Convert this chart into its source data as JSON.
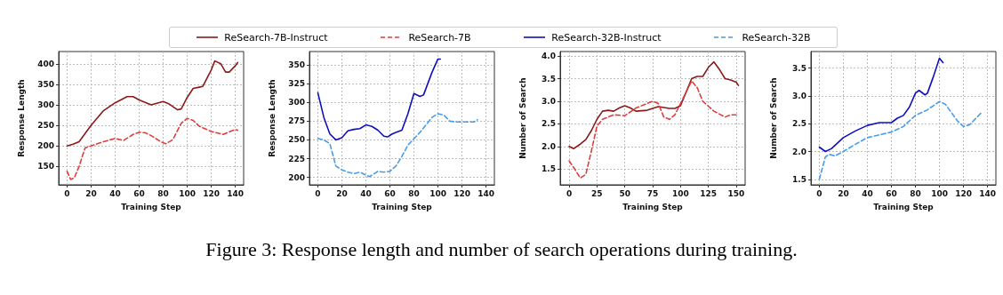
{
  "chart_data": [
    {
      "type": "line",
      "xlabel": "Training Step",
      "ylabel": "Response Length",
      "xlim": [
        -7,
        147
      ],
      "xticks": [
        0,
        20,
        40,
        60,
        80,
        100,
        120,
        140
      ],
      "ylim": [
        105,
        430
      ],
      "yticks": [
        150,
        200,
        250,
        300,
        350,
        400
      ],
      "grid": true,
      "legend": "top",
      "annotations": [
        "Figure 3: Response length and number of search operations during training."
      ],
      "series": [
        {
          "name": "ReSearch-7B-Instruct",
          "color": "#8b1a1a",
          "line_style": "solid",
          "x": [
            0,
            5,
            10,
            20,
            30,
            40,
            50,
            55,
            60,
            70,
            80,
            85,
            92,
            95,
            100,
            105,
            110,
            113,
            120,
            123,
            128,
            132,
            135,
            140,
            142
          ],
          "values": [
            200,
            204,
            210,
            250,
            285,
            305,
            320,
            320,
            312,
            300,
            308,
            302,
            288,
            290,
            318,
            340,
            343,
            345,
            385,
            407,
            400,
            380,
            380,
            395,
            403
          ]
        },
        {
          "name": "ReSearch-7B",
          "color": "#e03c3c",
          "line_style": "dashed",
          "x": [
            0,
            3,
            6,
            10,
            15,
            20,
            30,
            40,
            47,
            55,
            60,
            65,
            70,
            78,
            82,
            88,
            95,
            100,
            105,
            110,
            120,
            130,
            140,
            142
          ],
          "values": [
            138,
            118,
            122,
            150,
            195,
            200,
            210,
            218,
            213,
            228,
            233,
            232,
            225,
            210,
            205,
            215,
            255,
            267,
            262,
            248,
            235,
            228,
            240,
            238
          ]
        }
      ]
    },
    {
      "type": "line",
      "xlabel": "Training Step",
      "ylabel": "Response Length",
      "xlim": [
        -7,
        147
      ],
      "xticks": [
        0,
        20,
        40,
        60,
        80,
        100,
        120,
        140
      ],
      "ylim": [
        190,
        368
      ],
      "yticks": [
        200,
        225,
        250,
        275,
        300,
        325,
        350
      ],
      "grid": true,
      "legend": "top",
      "series": [
        {
          "name": "ReSearch-32B-Instruct",
          "color": "#0f0fbf",
          "line_style": "solid",
          "x": [
            0,
            5,
            10,
            15,
            20,
            25,
            30,
            35,
            40,
            45,
            50,
            55,
            58,
            62,
            65,
            70,
            75,
            80,
            85,
            88,
            95,
            100,
            102
          ],
          "values": [
            313,
            280,
            258,
            250,
            253,
            262,
            264,
            265,
            270,
            268,
            263,
            255,
            254,
            258,
            260,
            263,
            285,
            312,
            308,
            310,
            340,
            358,
            358
          ]
        },
        {
          "name": "ReSearch-32B",
          "color": "#4a9be8",
          "line_style": "dashed",
          "x": [
            0,
            5,
            10,
            15,
            20,
            25,
            30,
            35,
            40,
            43,
            50,
            55,
            60,
            65,
            70,
            75,
            85,
            95,
            100,
            105,
            110,
            115,
            120,
            130,
            133
          ],
          "values": [
            252,
            250,
            245,
            215,
            210,
            207,
            205,
            207,
            203,
            201,
            208,
            207,
            208,
            215,
            228,
            243,
            260,
            280,
            285,
            283,
            275,
            274,
            274,
            274,
            277
          ]
        }
      ]
    },
    {
      "type": "line",
      "xlabel": "Training Step",
      "ylabel": "Number of Search",
      "xlim": [
        -8,
        158
      ],
      "xticks": [
        0,
        25,
        50,
        75,
        100,
        125,
        150
      ],
      "ylim": [
        1.15,
        4.1
      ],
      "yticks": [
        {
          "value": 1.5,
          "label": "1.5"
        },
        {
          "value": 2,
          "label": "2.0"
        },
        {
          "value": 2.5,
          "label": "2.5"
        },
        {
          "value": 3,
          "label": "3.0"
        },
        {
          "value": 3.5,
          "label": "3.5"
        },
        {
          "value": 4,
          "label": "4.0"
        }
      ],
      "grid": true,
      "legend": "top",
      "series": [
        {
          "name": "ReSearch-7B-Instruct",
          "color": "#8b1a1a",
          "line_style": "solid",
          "x": [
            0,
            4,
            10,
            15,
            20,
            25,
            30,
            35,
            40,
            45,
            50,
            55,
            60,
            70,
            80,
            90,
            95,
            100,
            105,
            110,
            115,
            120,
            125,
            130,
            135,
            140,
            145,
            150,
            152
          ],
          "values": [
            2.0,
            1.95,
            2.05,
            2.15,
            2.35,
            2.6,
            2.78,
            2.8,
            2.78,
            2.85,
            2.9,
            2.85,
            2.78,
            2.8,
            2.88,
            2.84,
            2.84,
            2.9,
            3.2,
            3.5,
            3.55,
            3.55,
            3.75,
            3.87,
            3.7,
            3.5,
            3.47,
            3.42,
            3.35
          ]
        },
        {
          "name": "ReSearch-7B",
          "color": "#e03c3c",
          "line_style": "dashed",
          "x": [
            0,
            5,
            10,
            15,
            20,
            25,
            30,
            40,
            50,
            60,
            70,
            75,
            80,
            85,
            90,
            95,
            105,
            110,
            115,
            120,
            130,
            140,
            145,
            150
          ],
          "values": [
            1.68,
            1.5,
            1.3,
            1.38,
            1.9,
            2.45,
            2.6,
            2.7,
            2.68,
            2.85,
            2.95,
            3.0,
            2.95,
            2.65,
            2.6,
            2.7,
            3.2,
            3.45,
            3.3,
            3.0,
            2.78,
            2.65,
            2.7,
            2.7
          ]
        }
      ]
    },
    {
      "type": "line",
      "xlabel": "Training Step",
      "ylabel": "Number of Search",
      "xlim": [
        -7,
        147
      ],
      "xticks": [
        0,
        20,
        40,
        60,
        80,
        100,
        120,
        140
      ],
      "ylim": [
        1.4,
        3.8
      ],
      "yticks": [
        {
          "value": 1.5,
          "label": "1.5"
        },
        {
          "value": 2,
          "label": "2.0"
        },
        {
          "value": 2.5,
          "label": "2.5"
        },
        {
          "value": 3,
          "label": "3.0"
        },
        {
          "value": 3.5,
          "label": "3.5"
        }
      ],
      "grid": true,
      "legend": "top",
      "series": [
        {
          "name": "ReSearch-32B-Instruct",
          "color": "#0f0fbf",
          "line_style": "solid",
          "x": [
            0,
            5,
            10,
            20,
            30,
            40,
            50,
            60,
            65,
            70,
            75,
            80,
            83,
            88,
            90,
            95,
            100,
            103
          ],
          "values": [
            2.08,
            2.0,
            2.05,
            2.25,
            2.37,
            2.47,
            2.52,
            2.52,
            2.6,
            2.65,
            2.8,
            3.05,
            3.1,
            3.02,
            3.05,
            3.35,
            3.68,
            3.6
          ]
        },
        {
          "name": "ReSearch-32B",
          "color": "#4a9be8",
          "line_style": "dashed",
          "x": [
            0,
            5,
            8,
            13,
            20,
            30,
            40,
            50,
            60,
            70,
            80,
            90,
            100,
            105,
            115,
            120,
            125,
            135
          ],
          "values": [
            1.5,
            1.9,
            1.95,
            1.92,
            2.0,
            2.13,
            2.25,
            2.3,
            2.35,
            2.45,
            2.65,
            2.75,
            2.9,
            2.85,
            2.55,
            2.45,
            2.48,
            2.7
          ]
        }
      ]
    }
  ]
}
